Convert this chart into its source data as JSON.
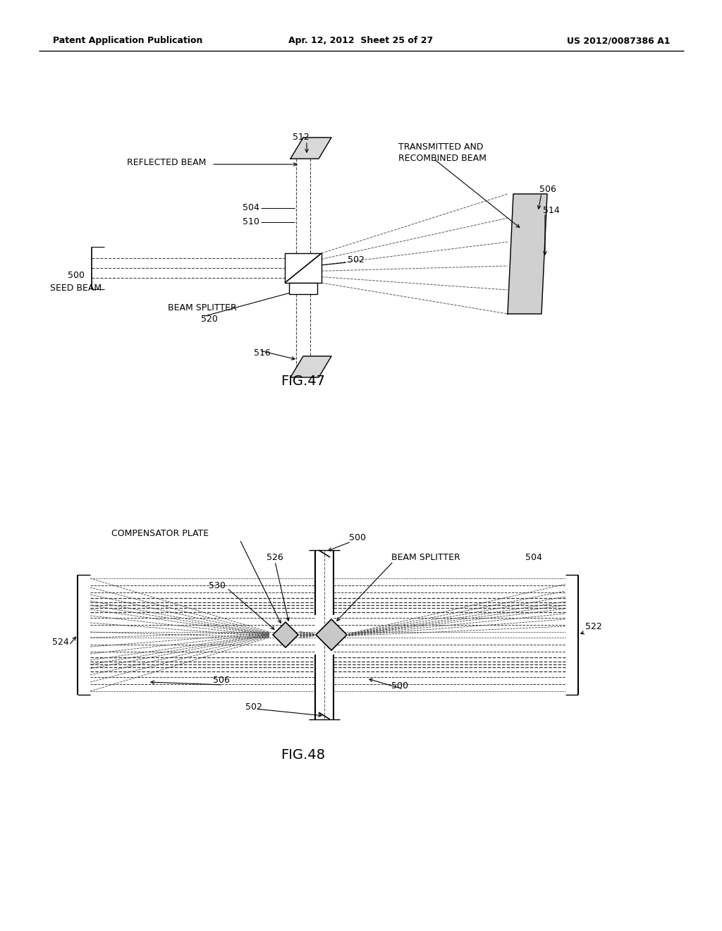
{
  "bg_color": "#ffffff",
  "text_color": "#000000",
  "line_color": "#000000",
  "header_left": "Patent Application Publication",
  "header_center": "Apr. 12, 2012  Sheet 25 of 27",
  "header_right": "US 2012/0087386 A1"
}
